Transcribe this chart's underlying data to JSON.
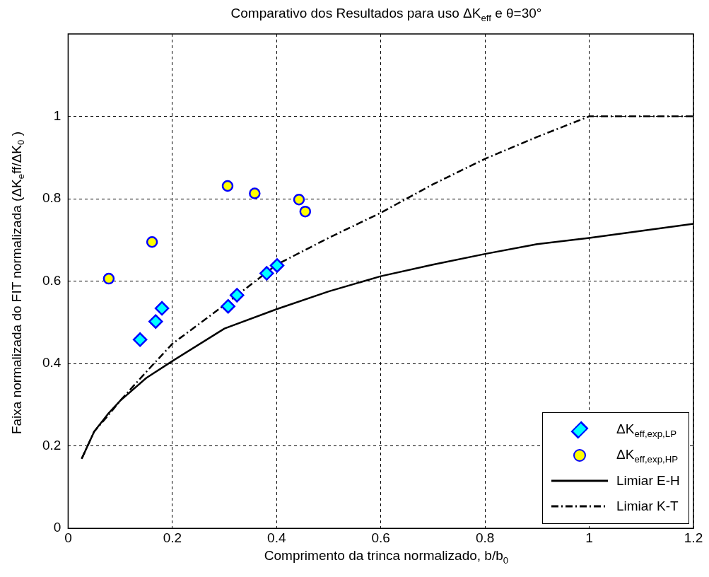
{
  "chart_data": {
    "type": "scatter",
    "title": "Comparativo dos Resultados para uso ΔK$_{eff}$ e θ=30°",
    "xlabel": "Comprimento da trinca normalizado, b/b$_{0}$",
    "ylabel": "Faixa normalizada do FIT normalizada (ΔK$_{e}$ff/ΔK$_{0}$ )",
    "xlim": [
      0,
      1.2
    ],
    "xticks": [
      0,
      0.2,
      0.4,
      0.6,
      0.8,
      1,
      1.2
    ],
    "ylim": [
      0,
      1.2
    ],
    "yticks": [
      0,
      0.2,
      0.4,
      0.6,
      0.8,
      1
    ],
    "grid": true,
    "legend": "bottom right",
    "series": [
      {
        "name": "ΔK$_{eff,exp,LP}$",
        "type": "scatter",
        "marker": "diamond",
        "color": "#00ffff",
        "x": [
          0.138,
          0.168,
          0.18,
          0.307,
          0.324,
          0.381,
          0.401
        ],
        "values": [
          0.458,
          0.502,
          0.534,
          0.539,
          0.566,
          0.619,
          0.638
        ]
      },
      {
        "name": "ΔK$_{eff,exp,HP}$",
        "type": "scatter",
        "marker": "circle",
        "color": "#ffff00",
        "x": [
          0.078,
          0.161,
          0.306,
          0.358,
          0.443,
          0.455
        ],
        "values": [
          0.606,
          0.695,
          0.831,
          0.813,
          0.798,
          0.769
        ]
      },
      {
        "name": "Limiar E-H",
        "type": "line",
        "marker": "none",
        "line_style": "solid",
        "color": "#000000",
        "x": [
          0.026,
          0.05,
          0.078,
          0.1,
          0.15,
          0.2,
          0.3,
          0.4,
          0.5,
          0.6,
          0.7,
          0.8,
          0.9,
          1.0,
          1.1,
          1.2
        ],
        "values": [
          0.169,
          0.235,
          0.28,
          0.31,
          0.365,
          0.406,
          0.485,
          0.532,
          0.575,
          0.612,
          0.64,
          0.666,
          0.69,
          0.705,
          0.722,
          0.739
        ]
      },
      {
        "name": "Limiar K-T",
        "type": "line",
        "marker": "none",
        "line_style": "dashdot",
        "color": "#000000",
        "x": [
          0.026,
          0.05,
          0.078,
          0.1,
          0.15,
          0.2,
          0.3,
          0.4,
          0.5,
          0.6,
          0.7,
          0.8,
          0.9,
          1.0,
          1.2
        ],
        "values": [
          0.169,
          0.235,
          0.276,
          0.31,
          0.38,
          0.448,
          0.542,
          0.64,
          0.705,
          0.766,
          0.835,
          0.897,
          0.95,
          1.0,
          1.0
        ]
      }
    ]
  }
}
